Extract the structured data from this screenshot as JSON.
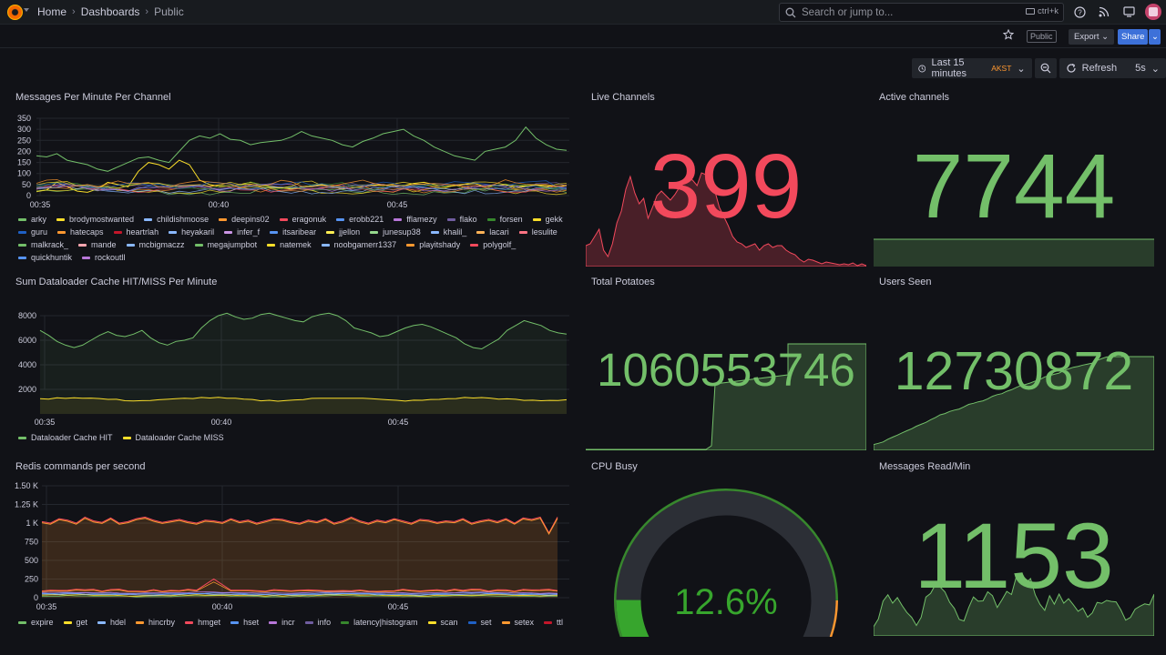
{
  "topbar": {
    "breadcrumbs": [
      "Home",
      "Dashboards",
      "Public"
    ],
    "search_placeholder": "Search or jump to...",
    "search_shortcut": "ctrl+k",
    "icons": [
      "help-icon",
      "rss-icon",
      "kiosk-icon",
      "user-avatar"
    ]
  },
  "subbar": {
    "public_label": "Public",
    "export_label": "Export",
    "share_label": "Share"
  },
  "timebar": {
    "range_label": "Last 15 minutes",
    "timezone": "AKST",
    "refresh_label": "Refresh",
    "refresh_interval": "5s"
  },
  "colors": {
    "green": "#73bf69",
    "red": "#f2495c",
    "yellow": "#fade2a",
    "orange": "#ff9830",
    "blue": "#5794f2",
    "gauge_green": "#37872d"
  },
  "panels": {
    "messages_per_minute": {
      "title": "Messages Per Minute Per Channel",
      "y_ticks": [
        "0",
        "50",
        "100",
        "150",
        "200",
        "250",
        "300",
        "350"
      ],
      "x_ticks": [
        "00:35",
        "00:40",
        "00:45"
      ],
      "legend": [
        {
          "name": "arky",
          "color": "#73bf69"
        },
        {
          "name": "brodymostwanted",
          "color": "#fade2a"
        },
        {
          "name": "childishmoose",
          "color": "#8ab8ff"
        },
        {
          "name": "deepins02",
          "color": "#ff9830"
        },
        {
          "name": "eragonuk",
          "color": "#f2495c"
        },
        {
          "name": "erobb221",
          "color": "#5794f2"
        },
        {
          "name": "fflamezy",
          "color": "#b877d9"
        },
        {
          "name": "flako",
          "color": "#705da0"
        },
        {
          "name": "forsen",
          "color": "#37872d"
        },
        {
          "name": "gekk",
          "color": "#fade2a"
        },
        {
          "name": "guru",
          "color": "#1f60c4"
        },
        {
          "name": "hatecaps",
          "color": "#ff9830"
        },
        {
          "name": "heartrlah",
          "color": "#c4162a"
        },
        {
          "name": "heyakaril",
          "color": "#8ab8ff"
        },
        {
          "name": "infer_f",
          "color": "#ca95e5"
        },
        {
          "name": "itsaribear",
          "color": "#5794f2"
        },
        {
          "name": "jjellon",
          "color": "#ffee52"
        },
        {
          "name": "junesup38",
          "color": "#96d98d"
        },
        {
          "name": "khalil_",
          "color": "#8ab8ff"
        },
        {
          "name": "lacari",
          "color": "#ffb357"
        },
        {
          "name": "lesulite",
          "color": "#ff7383"
        },
        {
          "name": "malkrack_",
          "color": "#73bf69"
        },
        {
          "name": "mande",
          "color": "#ffa6b0"
        },
        {
          "name": "mcbigmaczz",
          "color": "#8ab8ff"
        },
        {
          "name": "megajumpbot",
          "color": "#73bf69"
        },
        {
          "name": "natemek",
          "color": "#fade2a"
        },
        {
          "name": "noobgamerr1337",
          "color": "#8ab8ff"
        },
        {
          "name": "playitshady",
          "color": "#ff9830"
        },
        {
          "name": "polygolf_",
          "color": "#f2495c"
        },
        {
          "name": "quickhuntik",
          "color": "#5794f2"
        },
        {
          "name": "rockoutll",
          "color": "#b877d9"
        }
      ]
    },
    "live_channels": {
      "title": "Live Channels",
      "value": "399"
    },
    "active_channels": {
      "title": "Active channels",
      "value": "7744"
    },
    "dataloader": {
      "title": "Sum Dataloader Cache HIT/MISS Per Minute",
      "y_ticks": [
        "2000",
        "4000",
        "6000",
        "8000"
      ],
      "x_ticks": [
        "00:35",
        "00:40",
        "00:45"
      ],
      "legend": [
        {
          "name": "Dataloader Cache HIT",
          "color": "#73bf69"
        },
        {
          "name": "Dataloader Cache MISS",
          "color": "#fade2a"
        }
      ]
    },
    "total_potatoes": {
      "title": "Total Potatoes",
      "value": "1060553746"
    },
    "users_seen": {
      "title": "Users Seen",
      "value": "12730872"
    },
    "redis": {
      "title": "Redis commands per second",
      "y_ticks": [
        "0",
        "250",
        "500",
        "750",
        "1 K",
        "1.25 K",
        "1.50 K"
      ],
      "x_ticks": [
        "00:35",
        "00:40",
        "00:45"
      ],
      "legend": [
        {
          "name": "expire",
          "color": "#73bf69"
        },
        {
          "name": "get",
          "color": "#fade2a"
        },
        {
          "name": "hdel",
          "color": "#8ab8ff"
        },
        {
          "name": "hincrby",
          "color": "#ff9830"
        },
        {
          "name": "hmget",
          "color": "#f2495c"
        },
        {
          "name": "hset",
          "color": "#5794f2"
        },
        {
          "name": "incr",
          "color": "#b877d9"
        },
        {
          "name": "info",
          "color": "#705da0"
        },
        {
          "name": "latency|histogram",
          "color": "#37872d"
        },
        {
          "name": "scan",
          "color": "#fade2a"
        },
        {
          "name": "set",
          "color": "#1f60c4"
        },
        {
          "name": "setex",
          "color": "#ff9830"
        },
        {
          "name": "ttl",
          "color": "#c4162a"
        }
      ]
    },
    "cpu_busy": {
      "title": "CPU Busy",
      "value": "12.6%",
      "percent": 12.6
    },
    "messages_read": {
      "title": "Messages Read/Min",
      "value": "1153"
    }
  }
}
